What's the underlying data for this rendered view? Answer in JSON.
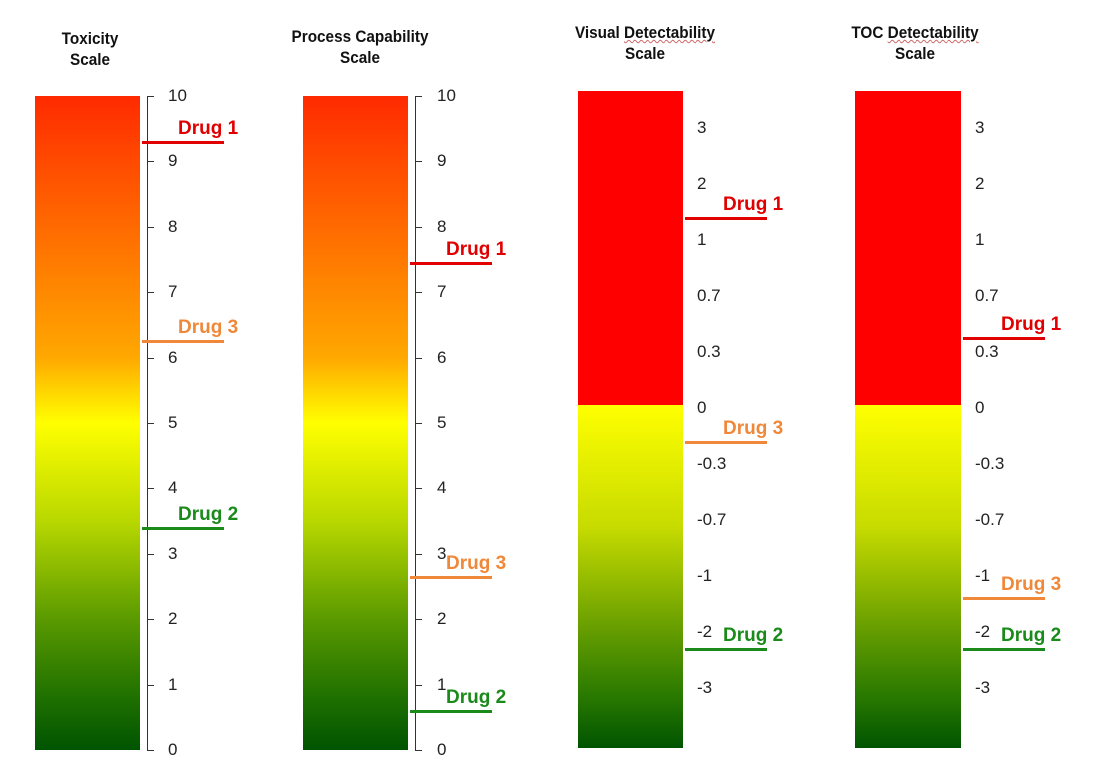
{
  "chart_data": [
    {
      "type": "scale",
      "title": [
        "Toxicity",
        "Scale"
      ],
      "axis": "linear",
      "ylim": [
        0,
        10
      ],
      "ticks": [
        "0",
        "1",
        "2",
        "3",
        "4",
        "5",
        "6",
        "7",
        "8",
        "9",
        "10"
      ],
      "gradient": "red-yellow-green",
      "markers": [
        {
          "label": "Drug 1",
          "value": 9.3,
          "color": "#e00000"
        },
        {
          "label": "Drug 3",
          "value": 6.25,
          "color": "#f0883a"
        },
        {
          "label": "Drug 2",
          "value": 3.4,
          "color": "#1a8a1a"
        }
      ]
    },
    {
      "type": "scale",
      "title": [
        "Process Capability",
        "Scale"
      ],
      "axis": "linear",
      "ylim": [
        0,
        10
      ],
      "ticks": [
        "0",
        "1",
        "2",
        "3",
        "4",
        "5",
        "6",
        "7",
        "8",
        "9",
        "10"
      ],
      "gradient": "red-yellow-green",
      "markers": [
        {
          "label": "Drug 1",
          "value": 7.45,
          "color": "#e00000"
        },
        {
          "label": "Drug 3",
          "value": 2.65,
          "color": "#f0883a"
        },
        {
          "label": "Drug 2",
          "value": 0.6,
          "color": "#1a8a1a"
        }
      ]
    },
    {
      "type": "scale",
      "title": [
        "Visual Detectability",
        "Scale"
      ],
      "axis": "categorical",
      "ticks": [
        "3",
        "2",
        "1",
        "0.7",
        "0.3",
        "0",
        "-0.3",
        "-0.7",
        "-1",
        "-2",
        "-3"
      ],
      "tick_values": [
        3,
        2,
        1,
        0.7,
        0.3,
        0,
        -0.3,
        -0.7,
        -1,
        -2,
        -3
      ],
      "regions": {
        "above_zero": "#ff0000",
        "below_zero": "yellow-to-green"
      },
      "markers": [
        {
          "label": "Drug 1",
          "value": 1.4,
          "color": "#e00000"
        },
        {
          "label": "Drug 3",
          "value": -0.18,
          "color": "#f0883a"
        },
        {
          "label": "Drug 2",
          "value": -2.3,
          "color": "#1a8a1a"
        }
      ]
    },
    {
      "type": "scale",
      "title": [
        "TOC Detectability",
        "Scale"
      ],
      "axis": "categorical",
      "ticks": [
        "3",
        "2",
        "1",
        "0.7",
        "0.3",
        "0",
        "-0.3",
        "-0.7",
        "-1",
        "-2",
        "-3"
      ],
      "tick_values": [
        3,
        2,
        1,
        0.7,
        0.3,
        0,
        -0.3,
        -0.7,
        -1,
        -2,
        -3
      ],
      "regions": {
        "above_zero": "#ff0000",
        "below_zero": "yellow-to-green"
      },
      "markers": [
        {
          "label": "Drug 1",
          "value": 0.4,
          "color": "#e00000"
        },
        {
          "label": "Drug 3",
          "value": -1.4,
          "color": "#f0883a"
        },
        {
          "label": "Drug 2",
          "value": -2.3,
          "color": "#1a8a1a"
        }
      ]
    }
  ]
}
